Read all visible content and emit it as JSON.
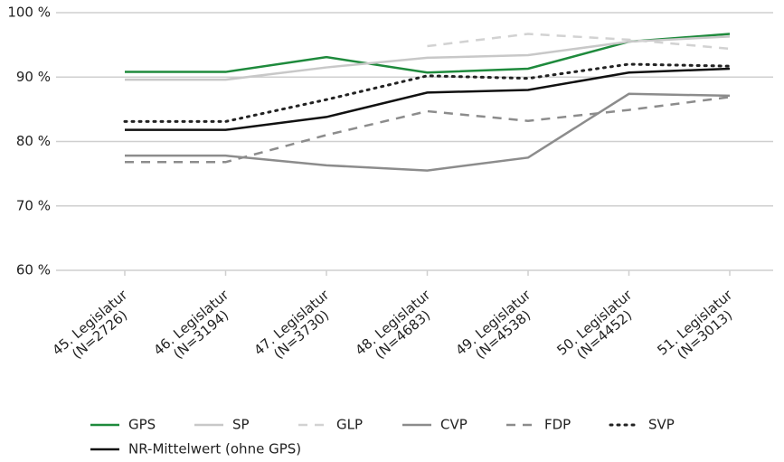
{
  "chart_data": {
    "type": "line",
    "categories": [
      "45. Legislatur\n(N=2726)",
      "46. Legislatur\n(N=3194)",
      "47. Legislatur\n(N=3730)",
      "48. Legislatur\n(N=4683)",
      "49. Legislatur\n(N=4538)",
      "50. Legislatur\n(N=4452)",
      "51. Legislatur\n(N=3013)"
    ],
    "ylim": [
      60,
      100
    ],
    "yticks": [
      {
        "value": 60,
        "label": "60 %"
      },
      {
        "value": 70,
        "label": "70 %"
      },
      {
        "value": 80,
        "label": "80 %"
      },
      {
        "value": 90,
        "label": "90 %"
      },
      {
        "value": 100,
        "label": "100 %"
      }
    ],
    "grid": true,
    "legend": "bottom",
    "series": [
      {
        "name": "GPS",
        "color": "#1e8a3c",
        "dash": "solid",
        "values": [
          90.8,
          90.8,
          93.1,
          90.7,
          91.3,
          95.5,
          96.7
        ]
      },
      {
        "name": "SP",
        "color": "#c8c8c8",
        "dash": "solid",
        "values": [
          89.6,
          89.6,
          91.5,
          93.0,
          93.4,
          95.5,
          96.3
        ]
      },
      {
        "name": "GLP",
        "color": "#d2d2d2",
        "dash": "dashed",
        "values": [
          null,
          null,
          null,
          94.8,
          96.7,
          95.8,
          94.4
        ]
      },
      {
        "name": "CVP",
        "color": "#8c8c8c",
        "dash": "solid",
        "values": [
          77.8,
          77.8,
          76.3,
          75.5,
          77.5,
          87.4,
          87.1
        ]
      },
      {
        "name": "FDP",
        "color": "#8c8c8c",
        "dash": "dashed",
        "values": [
          76.8,
          76.8,
          81.0,
          84.7,
          83.2,
          84.9,
          86.9
        ]
      },
      {
        "name": "SVP",
        "color": "#222222",
        "dash": "dotted",
        "values": [
          83.1,
          83.1,
          86.5,
          90.2,
          89.8,
          92.0,
          91.7
        ]
      },
      {
        "name": "NR-Mittelwert (ohne GPS)",
        "color": "#111111",
        "dash": "solid",
        "values": [
          81.8,
          81.8,
          83.8,
          87.6,
          88.0,
          90.7,
          91.3
        ]
      }
    ]
  }
}
